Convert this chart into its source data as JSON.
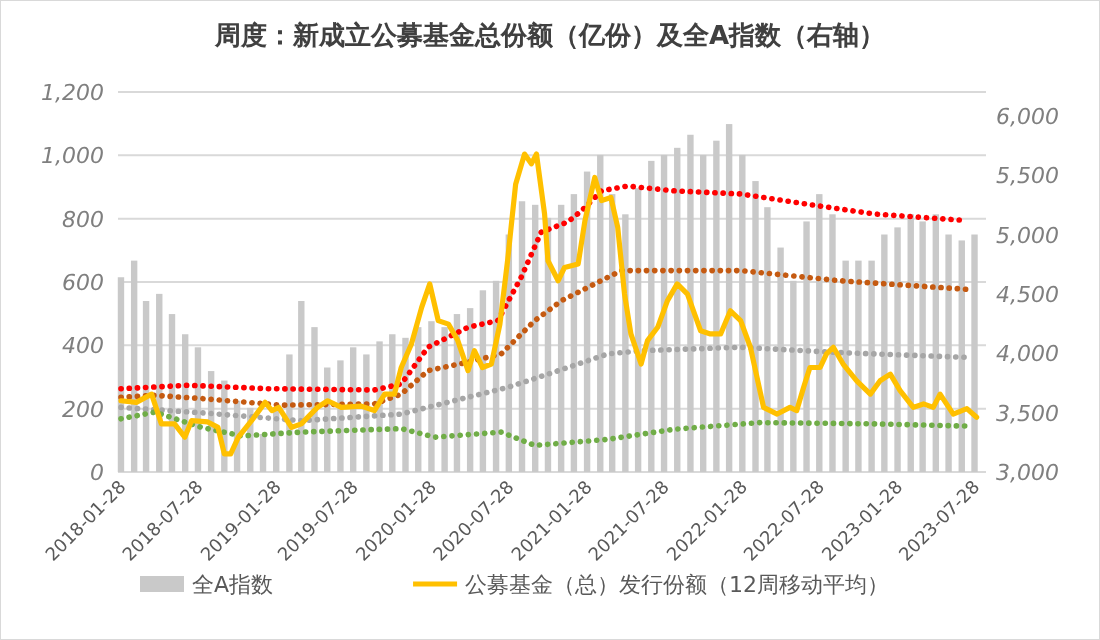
{
  "chart_data": {
    "type": "line",
    "title": "周度：新成立公募基金总份额（亿份）及全A指数（右轴）",
    "xlim": [
      "2018-01-21",
      "2023-08-24"
    ],
    "xticks": [
      "2018-01-28",
      "2018-07-28",
      "2019-01-28",
      "2019-07-28",
      "2020-01-28",
      "2020-07-28",
      "2021-01-28",
      "2021-07-28",
      "2022-01-28",
      "2022-07-28",
      "2023-01-28",
      "2023-07-28"
    ],
    "ylim": [
      0,
      1200
    ],
    "yticks": [
      0,
      200,
      400,
      600,
      800,
      {
        "value": 1000,
        "label": "1,000"
      },
      {
        "value": 1200,
        "label": "1,200"
      }
    ],
    "y2lim": [
      3000,
      6200
    ],
    "y2ticks": [
      {
        "value": 3000,
        "label": "3,000"
      },
      {
        "value": 3500,
        "label": "3,500"
      },
      {
        "value": 4000,
        "label": "4,000"
      },
      {
        "value": 4500,
        "label": "4,500"
      },
      {
        "value": 5000,
        "label": "5,000"
      },
      {
        "value": 5500,
        "label": "5,500"
      },
      {
        "value": 6000,
        "label": "6,000"
      }
    ],
    "grid": "y",
    "legend": "bottom",
    "series": [
      {
        "type": "bar",
        "axis": "y2",
        "name": "全A指数",
        "color": "#c9c9c9",
        "x": [
          "2018-01-28",
          "2018-02-28",
          "2018-03-28",
          "2018-04-28",
          "2018-05-28",
          "2018-06-28",
          "2018-07-28",
          "2018-08-28",
          "2018-09-28",
          "2018-10-28",
          "2018-11-28",
          "2018-12-28",
          "2019-01-28",
          "2019-02-28",
          "2019-03-28",
          "2019-04-28",
          "2019-05-28",
          "2019-06-28",
          "2019-07-28",
          "2019-08-28",
          "2019-09-28",
          "2019-10-28",
          "2019-11-28",
          "2019-12-28",
          "2020-01-28",
          "2020-02-28",
          "2020-03-28",
          "2020-04-28",
          "2020-05-28",
          "2020-06-28",
          "2020-07-28",
          "2020-08-28",
          "2020-09-28",
          "2020-10-28",
          "2020-11-28",
          "2020-12-28",
          "2021-01-28",
          "2021-02-28",
          "2021-03-28",
          "2021-04-28",
          "2021-05-28",
          "2021-06-28",
          "2021-07-28",
          "2021-08-28",
          "2021-09-28",
          "2021-10-28",
          "2021-11-28",
          "2021-12-28",
          "2022-01-28",
          "2022-02-28",
          "2022-03-28",
          "2022-04-28",
          "2022-05-28",
          "2022-06-28",
          "2022-07-28",
          "2022-08-28",
          "2022-09-28",
          "2022-10-28",
          "2022-11-28",
          "2022-12-28",
          "2023-01-28",
          "2023-02-28",
          "2023-03-28",
          "2023-04-28",
          "2023-05-28",
          "2023-06-28",
          "2023-07-28"
        ],
        "values": [
          4640,
          4780,
          4440,
          4500,
          4330,
          4160,
          4050,
          3850,
          3770,
          3600,
          3540,
          3320,
          3540,
          3990,
          4440,
          4220,
          3880,
          3940,
          4050,
          3990,
          4100,
          4160,
          4130,
          4220,
          4270,
          4220,
          4330,
          4380,
          4530,
          4610,
          5000,
          5280,
          5250,
          5140,
          5250,
          5340,
          5530,
          5670,
          5340,
          5170,
          5390,
          5620,
          5670,
          5730,
          5840,
          5670,
          5790,
          5930,
          5670,
          5450,
          5230,
          4890,
          4610,
          5110,
          5340,
          5170,
          4780,
          4780,
          4780,
          5000,
          5060,
          5170,
          5110,
          5170,
          5000,
          4950,
          5000
        ]
      },
      {
        "line_style": "dotted",
        "color": "#ff0000",
        "x": [
          "2018-01-28",
          "2018-07-05",
          "2019-01-10",
          "2019-09-16",
          "2019-11-18",
          "2020-01-20",
          "2020-04-23",
          "2020-07-02",
          "2020-08-26",
          "2020-10-12",
          "2020-12-14",
          "2021-01-15",
          "2021-03-03",
          "2021-05-03",
          "2021-08-20",
          "2022-01-24",
          "2022-06-28",
          "2022-12-03",
          "2023-07-10"
        ],
        "values": [
          263,
          274,
          263,
          259,
          278,
          394,
          457,
          478,
          615,
          757,
          790,
          825,
          888,
          903,
          888,
          878,
          846,
          815,
          794
        ]
      },
      {
        "line_style": "dotted",
        "color": "#c55a11",
        "x": [
          "2018-01-28",
          "2018-04-18",
          "2018-08-05",
          "2019-02-10",
          "2019-09-16",
          "2019-11-18",
          "2020-01-20",
          "2020-04-23",
          "2020-07-10",
          "2020-09-27",
          "2020-11-29",
          "2021-01-15",
          "2021-04-18",
          "2022-01-24",
          "2022-09-15",
          "2023-07-10"
        ],
        "values": [
          236,
          242,
          232,
          211,
          215,
          246,
          320,
          347,
          373,
          478,
          541,
          573,
          636,
          636,
          604,
          577
        ]
      },
      {
        "line_style": "dotted",
        "color": "#a6a6a6",
        "x": [
          "2018-01-28",
          "2018-08-05",
          "2019-03-28",
          "2019-11-18",
          "2020-04-23",
          "2020-07-25",
          "2020-10-28",
          "2021-03-18",
          "2021-06-04",
          "2022-01-24",
          "2022-09-15",
          "2023-07-10"
        ],
        "values": [
          204,
          187,
          162,
          183,
          236,
          267,
          309,
          373,
          383,
          394,
          377,
          362
        ]
      },
      {
        "line_style": "dotted",
        "color": "#70ad47",
        "x": [
          "2018-01-28",
          "2018-04-18",
          "2018-08-05",
          "2018-11-08",
          "2019-03-28",
          "2019-11-18",
          "2020-02-05",
          "2020-07-10",
          "2020-09-27",
          "2021-03-18",
          "2021-08-20",
          "2022-03-11",
          "2022-12-03",
          "2023-07-10"
        ],
        "values": [
          168,
          189,
          141,
          114,
          126,
          137,
          110,
          126,
          84,
          103,
          135,
          156,
          152,
          145
        ]
      },
      {
        "line_style": "solid",
        "name": "公募基金（总）发行份额（12周移动平均）",
        "color": "#ffc000",
        "x": [
          "2018-01-28",
          "2018-03-05",
          "2018-04-10",
          "2018-05-03",
          "2018-06-03",
          "2018-06-27",
          "2018-07-13",
          "2018-08-20",
          "2018-09-13",
          "2018-09-28",
          "2018-10-13",
          "2018-10-31",
          "2018-12-01",
          "2019-01-02",
          "2019-01-18",
          "2019-02-03",
          "2019-03-05",
          "2019-03-28",
          "2019-05-05",
          "2019-05-29",
          "2019-06-30",
          "2019-08-16",
          "2019-09-16",
          "2019-10-10",
          "2019-11-02",
          "2019-11-18",
          "2019-12-12",
          "2020-01-05",
          "2020-01-24",
          "2020-02-13",
          "2020-03-08",
          "2020-03-30",
          "2020-04-23",
          "2020-05-08",
          "2020-05-27",
          "2020-06-17",
          "2020-07-07",
          "2020-07-25",
          "2020-08-13",
          "2020-09-03",
          "2020-09-19",
          "2020-10-01",
          "2020-10-20",
          "2020-10-28",
          "2020-11-21",
          "2020-12-06",
          "2021-01-07",
          "2021-01-23",
          "2021-02-15",
          "2021-03-03",
          "2021-03-25",
          "2021-04-10",
          "2021-04-26",
          "2021-05-11",
          "2021-06-04",
          "2021-06-19",
          "2021-07-13",
          "2021-08-05",
          "2021-08-28",
          "2021-09-21",
          "2021-10-22",
          "2021-11-14",
          "2021-12-08",
          "2021-12-31",
          "2022-01-24",
          "2022-02-16",
          "2022-03-19",
          "2022-04-20",
          "2022-05-20",
          "2022-06-05",
          "2022-06-21",
          "2022-07-06",
          "2022-07-30",
          "2022-08-14",
          "2022-08-30",
          "2022-09-22",
          "2022-10-24",
          "2022-11-25",
          "2022-12-18",
          "2023-01-11",
          "2023-02-03",
          "2023-03-06",
          "2023-03-30",
          "2023-04-22",
          "2023-05-08",
          "2023-06-08",
          "2023-07-10",
          "2023-08-02"
        ],
        "values": [
          225,
          220,
          246,
          152,
          152,
          110,
          162,
          158,
          141,
          57,
          57,
          110,
          162,
          220,
          194,
          204,
          141,
          152,
          204,
          225,
          204,
          208,
          194,
          246,
          246,
          330,
          404,
          520,
          594,
          478,
          467,
          415,
          320,
          383,
          330,
          341,
          467,
          667,
          909,
          1004,
          973,
          1004,
          815,
          667,
          604,
          646,
          657,
          794,
          930,
          857,
          867,
          773,
          562,
          436,
          341,
          415,
          457,
          541,
          594,
          562,
          446,
          436,
          436,
          509,
          478,
          394,
          204,
          183,
          204,
          194,
          267,
          330,
          330,
          373,
          394,
          341,
          288,
          246,
          288,
          309,
          257,
          204,
          215,
          204,
          246,
          183,
          200,
          173
        ]
      }
    ]
  }
}
